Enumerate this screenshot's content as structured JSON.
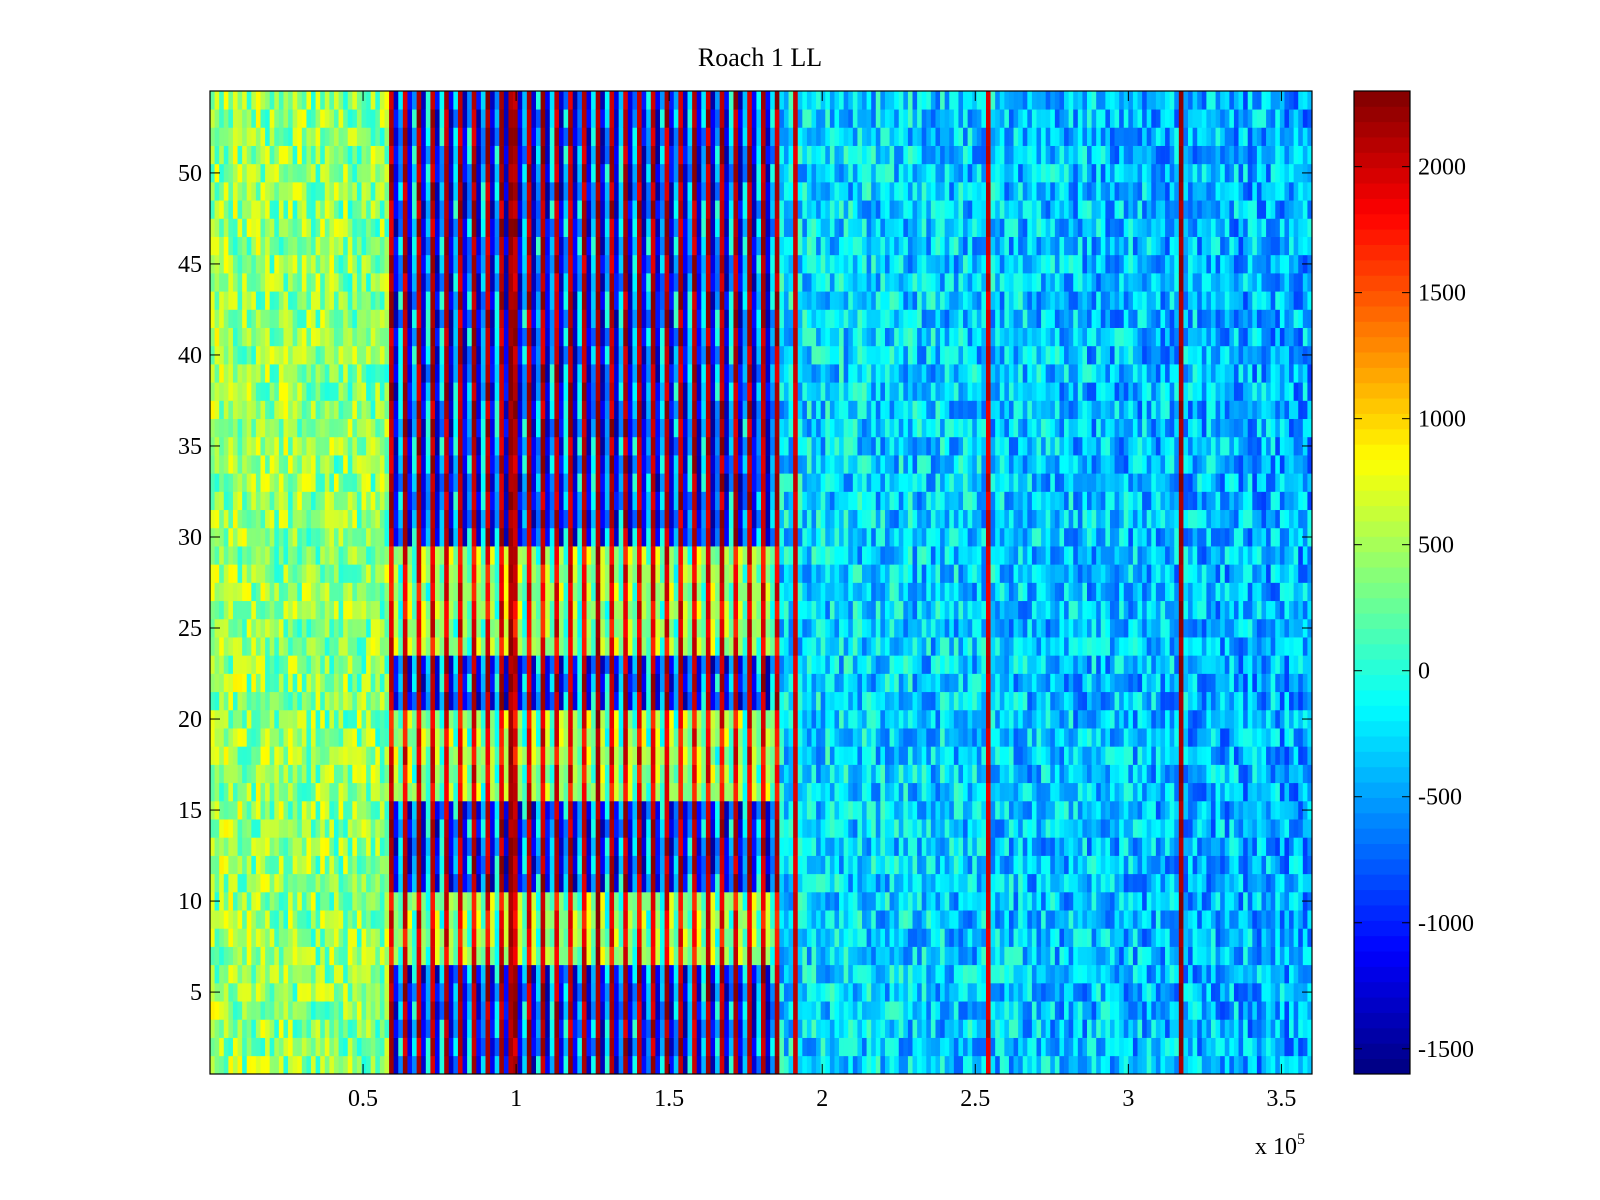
{
  "chart_data": {
    "type": "heatmap",
    "title": "Roach 1 LL",
    "xlabel": "",
    "ylabel": "",
    "x_exponent_label": {
      "base": "x 10",
      "power": "5"
    },
    "xlim": [
      0,
      360000
    ],
    "ylim": [
      0.5,
      54.5
    ],
    "n_rows": 54,
    "x_ticks": [
      50000,
      100000,
      150000,
      200000,
      250000,
      300000,
      350000
    ],
    "x_tick_labels": [
      "0.5",
      "1",
      "1.5",
      "2",
      "2.5",
      "3",
      "3.5"
    ],
    "y_ticks": [
      5,
      10,
      15,
      20,
      25,
      30,
      35,
      40,
      45,
      50
    ],
    "y_tick_labels": [
      "5",
      "10",
      "15",
      "20",
      "25",
      "30",
      "35",
      "40",
      "45",
      "50"
    ],
    "colormap": "jet",
    "clim": [
      -1600,
      2300
    ],
    "colorbar_ticks": [
      2000,
      1500,
      1000,
      500,
      0,
      -500,
      -1000,
      -1500
    ],
    "colorbar_tick_labels": [
      "2000",
      "1500",
      "1000",
      "500",
      "0",
      "-500",
      "-1000",
      "-1500"
    ],
    "regions": [
      {
        "x_range": [
          0,
          58000
        ],
        "mean_value": 450,
        "pattern": "noise"
      },
      {
        "x_range": [
          58000,
          186000
        ],
        "mean_value": 400,
        "pattern": "alternating-stripes"
      },
      {
        "x_range": [
          186000,
          360000
        ],
        "mean_value": -250,
        "pattern": "noise"
      }
    ],
    "strong_columns": [
      {
        "x": 97000,
        "value": 2300
      },
      {
        "x": 126000,
        "value": 2300
      },
      {
        "x": 191000,
        "value": 2100
      },
      {
        "x": 253000,
        "value": 2100
      },
      {
        "x": 316000,
        "value": 2300
      }
    ],
    "warm_row_bands": [
      [
        7,
        10
      ],
      [
        16,
        20
      ],
      [
        24,
        29
      ]
    ]
  }
}
